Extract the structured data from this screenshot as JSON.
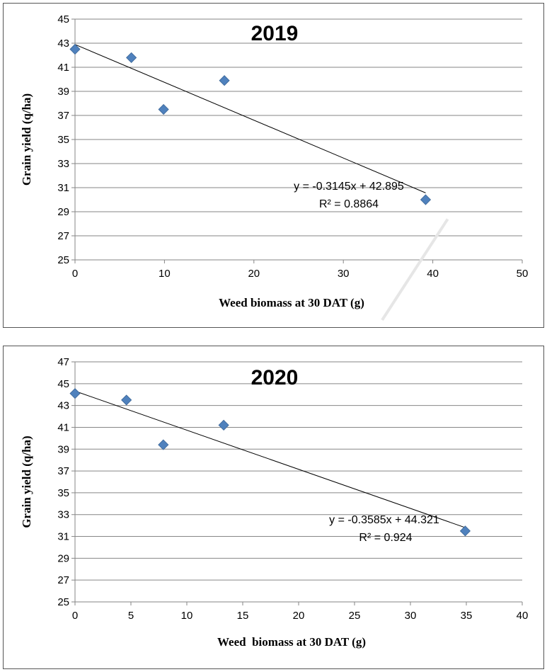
{
  "chart_data": [
    {
      "type": "scatter",
      "title": "2019",
      "xlabel": "Weed biomass at 30 DAT (g)",
      "ylabel": "Grain yield (q/ha)",
      "xlim": [
        0,
        50
      ],
      "ylim": [
        25,
        45
      ],
      "xticks": [
        0,
        10,
        20,
        30,
        40,
        50
      ],
      "yticks": [
        25,
        27,
        29,
        31,
        33,
        35,
        37,
        39,
        41,
        43,
        45
      ],
      "grid": "horizontal",
      "marker_color": "#4f81bd",
      "points": [
        {
          "x": 0,
          "y": 42.5
        },
        {
          "x": 6.3,
          "y": 41.8
        },
        {
          "x": 9.9,
          "y": 37.5
        },
        {
          "x": 16.7,
          "y": 39.9
        },
        {
          "x": 39.2,
          "y": 30.0
        }
      ],
      "trendline": {
        "slope": -0.3145,
        "intercept": 42.895,
        "x_range": [
          0,
          39.2
        ]
      },
      "equation": "y = -0.3145x + 42.895",
      "r_squared": "R² = 0.8864"
    },
    {
      "type": "scatter",
      "title": "2020",
      "xlabel": "Weed  biomass at 30 DAT (g)",
      "ylabel": "Grain yield (q/ha)",
      "xlim": [
        0,
        40
      ],
      "ylim": [
        25,
        47
      ],
      "xticks": [
        0,
        5,
        10,
        15,
        20,
        25,
        30,
        35,
        40
      ],
      "yticks": [
        25,
        27,
        29,
        31,
        33,
        35,
        37,
        39,
        41,
        43,
        45,
        47
      ],
      "grid": "horizontal",
      "marker_color": "#4f81bd",
      "points": [
        {
          "x": 0,
          "y": 44.1
        },
        {
          "x": 4.6,
          "y": 43.5
        },
        {
          "x": 7.9,
          "y": 39.4
        },
        {
          "x": 13.3,
          "y": 41.2
        },
        {
          "x": 34.9,
          "y": 31.5
        }
      ],
      "trendline": {
        "slope": -0.3585,
        "intercept": 44.321,
        "x_range": [
          0,
          34.9
        ]
      },
      "equation": "y = -0.3585x + 44.321",
      "r_squared": "R² = 0.924"
    }
  ]
}
